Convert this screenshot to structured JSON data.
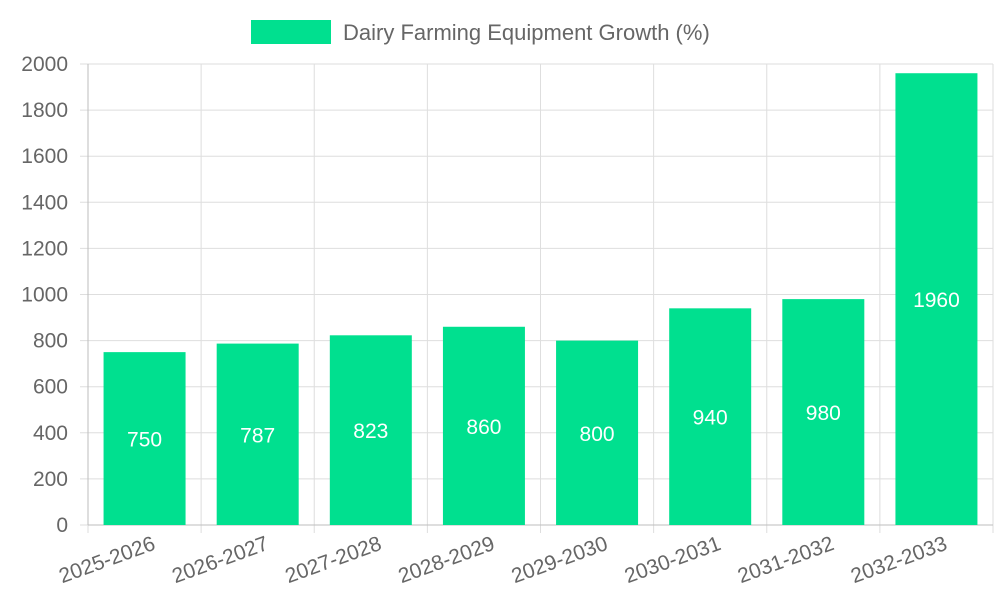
{
  "chart_data": {
    "type": "bar",
    "categories": [
      "2025-2026",
      "2026-2027",
      "2027-2028",
      "2028-2029",
      "2029-2030",
      "2030-2031",
      "2031-2032",
      "2032-2033"
    ],
    "series": [
      {
        "name": "Dairy Farming Equipment Growth (%)",
        "values": [
          750,
          787,
          823,
          860,
          800,
          940,
          980,
          1960
        ],
        "color": "#00e08f"
      }
    ],
    "ylim": [
      0,
      2000
    ],
    "yticks": [
      0,
      200,
      400,
      600,
      800,
      1000,
      1200,
      1400,
      1600,
      1800,
      2000
    ],
    "grid": true,
    "legend_position": "top",
    "data_labels": true
  }
}
